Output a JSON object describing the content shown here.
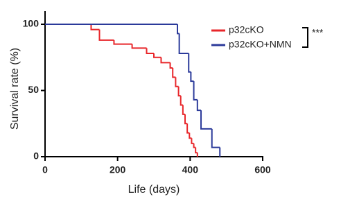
{
  "chart_data": {
    "type": "step",
    "xlabel": "Life (days)",
    "ylabel": "Survival rate (%)",
    "xlim": [
      0,
      600
    ],
    "xticks": [
      0,
      200,
      400,
      600
    ],
    "ylim": [
      0,
      100
    ],
    "yticks": [
      0,
      50,
      100
    ],
    "annotation": "***",
    "series": [
      {
        "name": "p32cKO",
        "color": "#e8262a",
        "x": [
          0,
          127,
          150,
          190,
          240,
          280,
          300,
          320,
          345,
          352,
          360,
          368,
          374,
          380,
          386,
          392,
          398,
          404,
          410,
          415,
          420
        ],
        "values": [
          100,
          96,
          88,
          85,
          82,
          78,
          75,
          71,
          67,
          60,
          53,
          46,
          39,
          32,
          25,
          18,
          14,
          10,
          7,
          3,
          0
        ]
      },
      {
        "name": "p32cKO+NMN",
        "color": "#2b3a9a",
        "x": [
          0,
          365,
          370,
          396,
          402,
          410,
          420,
          430,
          460,
          482
        ],
        "values": [
          100,
          93,
          78,
          64,
          57,
          43,
          35,
          21,
          7,
          0
        ]
      }
    ]
  }
}
